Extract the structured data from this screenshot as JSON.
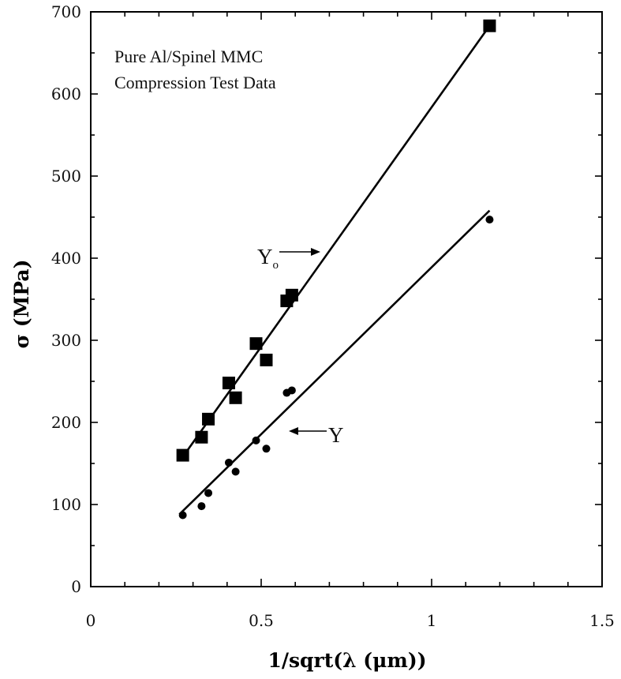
{
  "chart_data": {
    "type": "scatter",
    "xlabel": "1/sqrt(λ (μm))",
    "ylabel": "σ (MPa)",
    "xlim": [
      0,
      1.5
    ],
    "ylim": [
      0,
      700
    ],
    "xticks": [
      0,
      0.5,
      1,
      1.5
    ],
    "xtick_labels": [
      "0",
      "0.5",
      "1",
      "1.5"
    ],
    "yticks": [
      0,
      100,
      200,
      300,
      400,
      500,
      600,
      700
    ],
    "ytick_labels": [
      "0",
      "100",
      "200",
      "300",
      "400",
      "500",
      "600",
      "700"
    ],
    "grid": false,
    "annotations": [
      "Pure Al/Spinel MMC",
      "Compression Test Data"
    ],
    "series": [
      {
        "name": "Yo",
        "marker": "square",
        "points": [
          {
            "x": 0.27,
            "y": 160
          },
          {
            "x": 0.325,
            "y": 182
          },
          {
            "x": 0.345,
            "y": 204
          },
          {
            "x": 0.405,
            "y": 248
          },
          {
            "x": 0.425,
            "y": 230
          },
          {
            "x": 0.485,
            "y": 296
          },
          {
            "x": 0.515,
            "y": 276
          },
          {
            "x": 0.575,
            "y": 348
          },
          {
            "x": 0.59,
            "y": 355
          },
          {
            "x": 1.17,
            "y": 683
          }
        ],
        "fit_line": [
          [
            0.27,
            158
          ],
          [
            1.17,
            683
          ]
        ]
      },
      {
        "name": "Y",
        "marker": "circle",
        "points": [
          {
            "x": 0.27,
            "y": 87
          },
          {
            "x": 0.325,
            "y": 98
          },
          {
            "x": 0.345,
            "y": 114
          },
          {
            "x": 0.405,
            "y": 151
          },
          {
            "x": 0.425,
            "y": 140
          },
          {
            "x": 0.485,
            "y": 178
          },
          {
            "x": 0.515,
            "y": 168
          },
          {
            "x": 0.575,
            "y": 236
          },
          {
            "x": 0.59,
            "y": 239
          },
          {
            "x": 1.17,
            "y": 447
          }
        ],
        "fit_line": [
          [
            0.26,
            88
          ],
          [
            1.17,
            458
          ]
        ]
      }
    ],
    "colors": {
      "ink": "#000000",
      "background": "#ffffff"
    }
  }
}
